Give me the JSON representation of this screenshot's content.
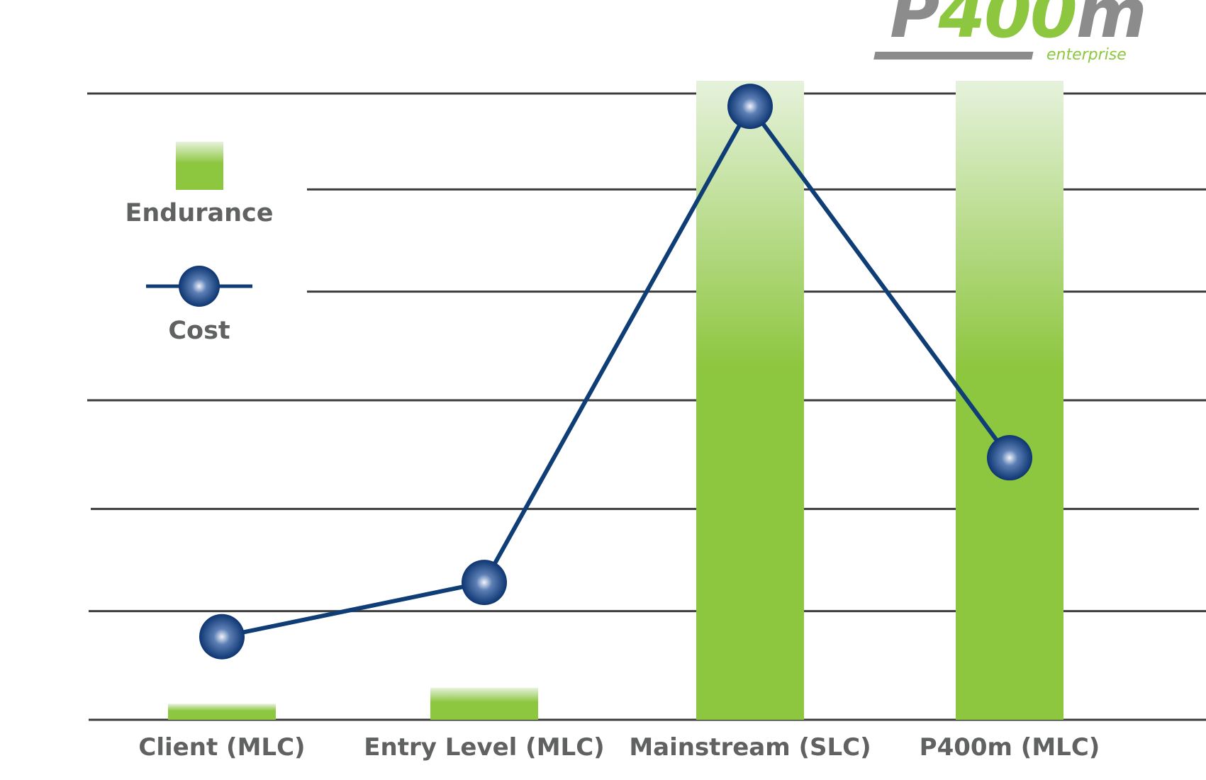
{
  "chart_data": {
    "type": "bar+line",
    "categories": [
      "Client (MLC)",
      "Entry Level (MLC)",
      "Mainstream (SLC)",
      "P400m (MLC)"
    ],
    "series": [
      {
        "name": "Endurance",
        "kind": "bar",
        "values": [
          2.5,
          5,
          100,
          100
        ]
      },
      {
        "name": "Cost",
        "kind": "line",
        "values": [
          13,
          21.5,
          96,
          41
        ]
      }
    ],
    "ylim": [
      0,
      100
    ],
    "gridlines": [
      0,
      17,
      33,
      50,
      67,
      83,
      98
    ],
    "title": "",
    "xlabel": "",
    "ylabel": "",
    "grid": true,
    "legend_position": "left",
    "colors": {
      "bar": "#8dc63f",
      "bar_top": "#e6f2dc",
      "line": "#0f3d75",
      "marker_center": "#f1f4fb",
      "marker_mid": "#5c7fb5",
      "marker_edge": "#0d3571",
      "grid": "#3c3c3c",
      "text": "#606161"
    }
  },
  "logo": {
    "prefix": "P",
    "highlight": "400",
    "suffix": "m",
    "tagline": "enterprise",
    "colors": {
      "gray": "#8c8c8d",
      "green": "#8dc63f"
    }
  }
}
